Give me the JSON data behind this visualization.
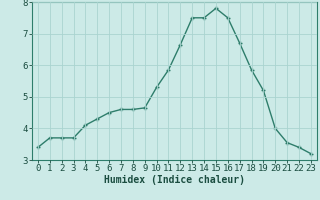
{
  "x": [
    0,
    1,
    2,
    3,
    4,
    5,
    6,
    7,
    8,
    9,
    10,
    11,
    12,
    13,
    14,
    15,
    16,
    17,
    18,
    19,
    20,
    21,
    22,
    23
  ],
  "y": [
    3.4,
    3.7,
    3.7,
    3.7,
    4.1,
    4.3,
    4.5,
    4.6,
    4.6,
    4.65,
    5.3,
    5.85,
    6.65,
    7.5,
    7.5,
    7.8,
    7.5,
    6.7,
    5.85,
    5.2,
    4.0,
    3.55,
    3.4,
    3.2
  ],
  "line_color": "#2e7d6b",
  "marker": "+",
  "marker_size": 3,
  "marker_linewidth": 1.0,
  "line_width": 1.0,
  "bg_color": "#cceae7",
  "grid_color": "#aad4d0",
  "xlabel": "Humidex (Indice chaleur)",
  "xlabel_fontsize": 7,
  "tick_fontsize": 6.5,
  "ylim": [
    3,
    8
  ],
  "xlim": [
    -0.5,
    23.5
  ],
  "yticks": [
    3,
    4,
    5,
    6,
    7,
    8
  ],
  "xticks": [
    0,
    1,
    2,
    3,
    4,
    5,
    6,
    7,
    8,
    9,
    10,
    11,
    12,
    13,
    14,
    15,
    16,
    17,
    18,
    19,
    20,
    21,
    22,
    23
  ],
  "spine_color": "#2e7d6b",
  "tick_color": "#1a4d40"
}
